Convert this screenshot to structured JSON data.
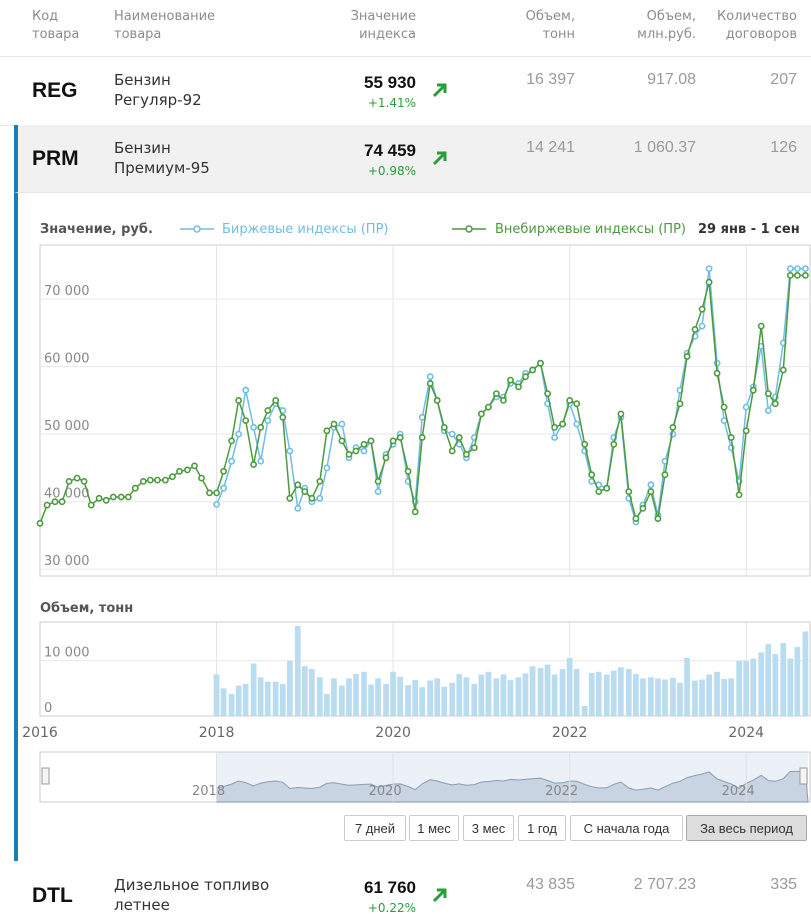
{
  "header": {
    "code": "Код\nтовара",
    "name": "Наименование\nтовара",
    "index": "Значение\nиндекса",
    "volume_t": "Объем,\nтонн",
    "volume_rub": "Объем,\nмлн.руб.",
    "contracts": "Количество\nдоговоров"
  },
  "rows": [
    {
      "code": "REG",
      "name": "Бензин\nРегуляр-92",
      "value": "55 930",
      "change": "+1.41%",
      "volume_t": "16 397",
      "volume_rub": "917.08",
      "contracts": "207"
    },
    {
      "code": "PRM",
      "name": "Бензин\nПремиум-95",
      "value": "74 459",
      "change": "+0.98%",
      "volume_t": "14 241",
      "volume_rub": "1 060.37",
      "contracts": "126"
    },
    {
      "code": "DTL",
      "name": "Дизельное топливо\nлетнее",
      "value": "61 760",
      "change": "+0.22%",
      "volume_t": "43 835",
      "volume_rub": "2 707.23",
      "contracts": "335"
    }
  ],
  "chart": {
    "price_title": "Значение, руб.",
    "legend_exchange": "Биржевые индексы (ПР)",
    "legend_otc": "Внебиржевые индексы (ПР)",
    "date_range": "29 янв - 1 сен",
    "volume_title": "Объем, тонн",
    "colors": {
      "exchange": "#6fbde6",
      "otc": "#4b9a3c",
      "volume": "#b9dcf0",
      "accent": "#1a7fb5"
    }
  },
  "buttons": [
    "7 дней",
    "1 мес",
    "3 мес",
    "1 год",
    "С начала года",
    "За весь период"
  ],
  "chart_data": {
    "type": "line",
    "x_axis_ticks": [
      "2016",
      "2018",
      "2020",
      "2022",
      "2024"
    ],
    "navigator_ticks": [
      "2018",
      "2020",
      "2022",
      "2024"
    ],
    "price_yticks": [
      "30 000",
      "40 000",
      "50 000",
      "60 000",
      "70 000"
    ],
    "price_ylim": [
      29000,
      78000
    ],
    "volume_yticks": [
      "0",
      "10 000"
    ],
    "volume_ylim": [
      0,
      17000
    ],
    "xlim": [
      2016.0,
      2024.7
    ],
    "series": [
      {
        "name": "Биржевые индексы (ПР)",
        "x": [
          2018.0,
          2018.08,
          2018.17,
          2018.25,
          2018.33,
          2018.42,
          2018.5,
          2018.58,
          2018.67,
          2018.75,
          2018.83,
          2018.92,
          2019.0,
          2019.08,
          2019.17,
          2019.25,
          2019.33,
          2019.42,
          2019.5,
          2019.58,
          2019.67,
          2019.75,
          2019.83,
          2019.92,
          2020.0,
          2020.08,
          2020.17,
          2020.25,
          2020.33,
          2020.42,
          2020.5,
          2020.58,
          2020.67,
          2020.75,
          2020.83,
          2020.92,
          2021.0,
          2021.08,
          2021.17,
          2021.25,
          2021.33,
          2021.42,
          2021.5,
          2021.58,
          2021.67,
          2021.75,
          2021.83,
          2021.92,
          2022.0,
          2022.08,
          2022.17,
          2022.25,
          2022.33,
          2022.42,
          2022.5,
          2022.58,
          2022.67,
          2022.75,
          2022.83,
          2022.92,
          2023.0,
          2023.08,
          2023.17,
          2023.25,
          2023.33,
          2023.42,
          2023.5,
          2023.58,
          2023.67,
          2023.75,
          2023.83,
          2023.92,
          2024.0,
          2024.08,
          2024.17,
          2024.25,
          2024.33,
          2024.42,
          2024.5,
          2024.58,
          2024.67
        ],
        "values": [
          39600,
          42000,
          46000,
          50000,
          56500,
          51000,
          46000,
          52000,
          54500,
          53500,
          47500,
          39000,
          42000,
          40000,
          40500,
          45000,
          51000,
          51500,
          46500,
          48000,
          47500,
          49000,
          41500,
          47000,
          48500,
          50000,
          43000,
          40000,
          52500,
          58500,
          55000,
          50500,
          50000,
          48500,
          46500,
          49500,
          53000,
          54000,
          55500,
          55500,
          57500,
          57500,
          59000,
          59500,
          60500,
          54500,
          49500,
          51500,
          54500,
          51500,
          47500,
          43000,
          42500,
          42000,
          49500,
          52500,
          40500,
          37000,
          39500,
          42500,
          38000,
          46000,
          50000,
          56500,
          62000,
          64500,
          66000,
          74500,
          60500,
          52000,
          48000,
          43000,
          54000,
          57000,
          63000,
          53500,
          55500,
          63500,
          74500,
          74500,
          74500
        ]
      },
      {
        "name": "Внебиржевые индексы (ПР)",
        "x": [
          2016.0,
          2016.08,
          2016.17,
          2016.25,
          2016.33,
          2016.42,
          2016.5,
          2016.58,
          2016.67,
          2016.75,
          2016.83,
          2016.92,
          2017.0,
          2017.08,
          2017.17,
          2017.25,
          2017.33,
          2017.42,
          2017.5,
          2017.58,
          2017.67,
          2017.75,
          2017.83,
          2017.92,
          2018.0,
          2018.08,
          2018.17,
          2018.25,
          2018.33,
          2018.42,
          2018.5,
          2018.58,
          2018.67,
          2018.75,
          2018.83,
          2018.92,
          2019.0,
          2019.08,
          2019.17,
          2019.25,
          2019.33,
          2019.42,
          2019.5,
          2019.58,
          2019.67,
          2019.75,
          2019.83,
          2019.92,
          2020.0,
          2020.08,
          2020.17,
          2020.25,
          2020.33,
          2020.42,
          2020.5,
          2020.58,
          2020.67,
          2020.75,
          2020.83,
          2020.92,
          2021.0,
          2021.08,
          2021.17,
          2021.25,
          2021.33,
          2021.42,
          2021.5,
          2021.58,
          2021.67,
          2021.75,
          2021.83,
          2021.92,
          2022.0,
          2022.08,
          2022.17,
          2022.25,
          2022.33,
          2022.42,
          2022.5,
          2022.58,
          2022.67,
          2022.75,
          2022.83,
          2022.92,
          2023.0,
          2023.08,
          2023.17,
          2023.25,
          2023.33,
          2023.42,
          2023.5,
          2023.58,
          2023.67,
          2023.75,
          2023.83,
          2023.92,
          2024.0,
          2024.08,
          2024.17,
          2024.25,
          2024.33,
          2024.42,
          2024.5,
          2024.58,
          2024.67
        ],
        "values": [
          36800,
          39500,
          40000,
          40000,
          43000,
          43500,
          43000,
          39500,
          40500,
          40200,
          40700,
          40700,
          40700,
          42000,
          43000,
          43200,
          43200,
          43200,
          43700,
          44500,
          44700,
          45300,
          43500,
          41300,
          41300,
          44500,
          49000,
          55000,
          52000,
          45500,
          51000,
          53500,
          55000,
          52500,
          40500,
          42500,
          41500,
          40500,
          43000,
          50500,
          51500,
          49000,
          47000,
          47500,
          48500,
          49000,
          43000,
          46500,
          49000,
          49500,
          44500,
          38500,
          49500,
          57500,
          55000,
          51000,
          47500,
          49500,
          47000,
          48000,
          53000,
          54000,
          56000,
          55000,
          58000,
          57000,
          58500,
          59500,
          60500,
          56000,
          51000,
          51500,
          55000,
          54500,
          48500,
          44000,
          41500,
          42000,
          48500,
          53000,
          41500,
          37500,
          39000,
          41500,
          37500,
          44000,
          51000,
          54500,
          61500,
          65500,
          68500,
          72500,
          59000,
          54000,
          49500,
          41000,
          50500,
          56500,
          66000,
          56000,
          54500,
          59500,
          73500,
          73500,
          73500
        ]
      }
    ],
    "volume": {
      "name": "Объем, тонн",
      "x": [
        2018.0,
        2018.08,
        2018.17,
        2018.25,
        2018.33,
        2018.42,
        2018.5,
        2018.58,
        2018.67,
        2018.75,
        2018.83,
        2018.92,
        2019.0,
        2019.08,
        2019.17,
        2019.25,
        2019.33,
        2019.42,
        2019.5,
        2019.58,
        2019.67,
        2019.75,
        2019.83,
        2019.92,
        2020.0,
        2020.08,
        2020.17,
        2020.25,
        2020.33,
        2020.42,
        2020.5,
        2020.58,
        2020.67,
        2020.75,
        2020.83,
        2020.92,
        2021.0,
        2021.08,
        2021.17,
        2021.25,
        2021.33,
        2021.42,
        2021.5,
        2021.58,
        2021.67,
        2021.75,
        2021.83,
        2021.92,
        2022.0,
        2022.08,
        2022.17,
        2022.25,
        2022.33,
        2022.42,
        2022.5,
        2022.58,
        2022.67,
        2022.75,
        2022.83,
        2022.92,
        2023.0,
        2023.08,
        2023.17,
        2023.25,
        2023.33,
        2023.42,
        2023.5,
        2023.58,
        2023.67,
        2023.75,
        2023.83,
        2023.92,
        2024.0,
        2024.08,
        2024.17,
        2024.25,
        2024.33,
        2024.42,
        2024.5,
        2024.58,
        2024.67
      ],
      "values": [
        7500,
        5000,
        4000,
        5500,
        5800,
        9500,
        7000,
        6200,
        6200,
        5800,
        10000,
        16300,
        9000,
        8500,
        7000,
        4000,
        6800,
        5500,
        6800,
        7600,
        8000,
        5700,
        6800,
        5800,
        8000,
        7100,
        5600,
        6500,
        5200,
        6400,
        6800,
        5300,
        6000,
        7600,
        7000,
        5800,
        7500,
        8000,
        6800,
        7500,
        6500,
        7000,
        7700,
        9000,
        8700,
        9300,
        7500,
        8500,
        10500,
        8500,
        1800,
        7800,
        8000,
        7500,
        8200,
        8800,
        8500,
        7600,
        6800,
        7000,
        6800,
        6600,
        6900,
        6000,
        10500,
        6400,
        6600,
        7500,
        8000,
        6700,
        6800,
        10000,
        10000,
        10400,
        11500,
        13000,
        11200,
        13200,
        10400,
        12500,
        15300
      ]
    }
  }
}
